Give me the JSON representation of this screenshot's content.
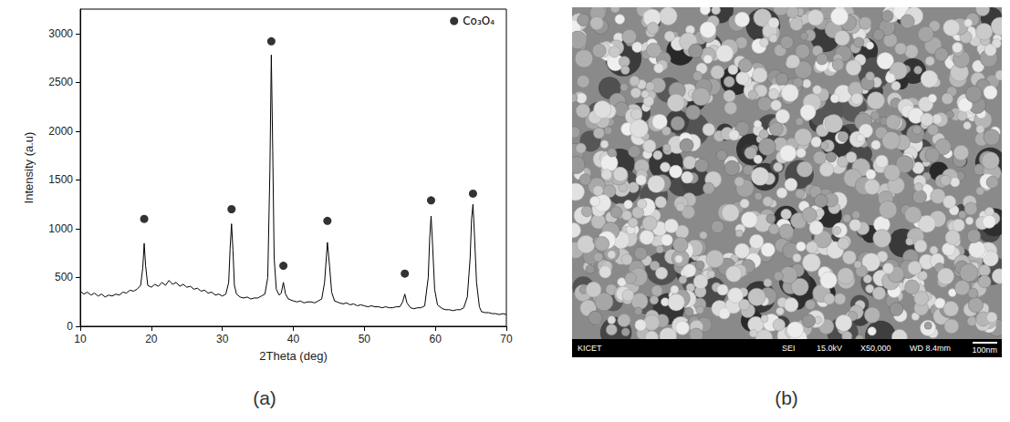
{
  "chart_data": {
    "type": "line",
    "panel_label": "(a)",
    "x_label": "2Theta (deg)",
    "y_label": "Intensity (a.u)",
    "xlim": [
      10,
      70
    ],
    "xticks": [
      10,
      20,
      30,
      40,
      50,
      60,
      70
    ],
    "ylim": [
      0,
      3250
    ],
    "yticks": [
      0,
      500,
      1000,
      1500,
      2000,
      2500,
      3000
    ],
    "grid": false,
    "legend": "upper right",
    "series": [
      {
        "type": "line",
        "color": "#000000",
        "line_style": "solid",
        "x": [
          10,
          10.5,
          11,
          11.5,
          12,
          12.5,
          13,
          13.5,
          14,
          14.5,
          15,
          15.5,
          16,
          16.5,
          17,
          17.5,
          18,
          18.5,
          18.8,
          19.0,
          19.2,
          19.5,
          20,
          20.5,
          21,
          21.5,
          22,
          22.5,
          23,
          23.5,
          24,
          24.5,
          25,
          25.5,
          26,
          26.5,
          27,
          27.5,
          28,
          28.5,
          29,
          29.5,
          30,
          30.5,
          30.9,
          31.1,
          31.3,
          31.5,
          31.7,
          32,
          32.5,
          33,
          33.5,
          34,
          34.5,
          35,
          35.5,
          36,
          36.4,
          36.7,
          36.9,
          37.1,
          37.3,
          37.6,
          38,
          38.3,
          38.6,
          38.9,
          39.3,
          40,
          40.5,
          41,
          41.5,
          42,
          42.5,
          43,
          43.5,
          44,
          44.4,
          44.8,
          45.1,
          45.4,
          45.8,
          46.5,
          47,
          47.5,
          48,
          48.5,
          49,
          49.5,
          50,
          50.5,
          51,
          51.5,
          52,
          52.5,
          53,
          53.5,
          54,
          54.5,
          55,
          55.4,
          55.7,
          56.0,
          56.5,
          57,
          57.5,
          58,
          58.5,
          59.0,
          59.2,
          59.4,
          59.6,
          59.9,
          60.3,
          61,
          61.5,
          62,
          62.5,
          63,
          63.5,
          64,
          64.5,
          64.9,
          65.1,
          65.3,
          65.5,
          65.8,
          66.2,
          66.5,
          67,
          67.5,
          68,
          68.5,
          69,
          69.5,
          70
        ],
        "values": [
          360,
          330,
          350,
          320,
          340,
          310,
          330,
          300,
          320,
          310,
          330,
          320,
          350,
          340,
          370,
          360,
          380,
          420,
          600,
          850,
          620,
          420,
          400,
          430,
          410,
          450,
          420,
          470,
          430,
          450,
          410,
          430,
          400,
          410,
          380,
          390,
          360,
          370,
          340,
          350,
          320,
          330,
          310,
          330,
          450,
          800,
          1050,
          780,
          420,
          330,
          300,
          290,
          300,
          280,
          290,
          290,
          310,
          330,
          500,
          1600,
          2780,
          1800,
          700,
          380,
          320,
          340,
          450,
          330,
          280,
          260,
          250,
          260,
          240,
          250,
          250,
          240,
          260,
          280,
          450,
          860,
          620,
          350,
          260,
          240,
          230,
          240,
          220,
          230,
          210,
          220,
          210,
          200,
          210,
          200,
          200,
          190,
          200,
          190,
          190,
          200,
          200,
          250,
          330,
          240,
          190,
          180,
          190,
          190,
          210,
          500,
          900,
          1130,
          850,
          380,
          220,
          180,
          170,
          170,
          160,
          170,
          170,
          190,
          300,
          700,
          1100,
          1250,
          950,
          450,
          200,
          150,
          140,
          140,
          130,
          130,
          120,
          130,
          120
        ]
      },
      {
        "name": "Co₃O₄",
        "type": "scatter",
        "marker": "circle",
        "color": "#000000",
        "x": [
          19.0,
          31.3,
          36.9,
          38.6,
          44.8,
          55.7,
          59.4,
          65.3
        ],
        "values": [
          1100,
          1200,
          2920,
          620,
          1080,
          540,
          1290,
          1360
        ]
      }
    ]
  },
  "image_panel": {
    "panel_label": "(b)",
    "info_bar": [
      "KICET",
      "SEI",
      "15.0kV",
      "X50,000",
      "WD 8.4mm"
    ],
    "scale_bar_label": "100nm"
  }
}
